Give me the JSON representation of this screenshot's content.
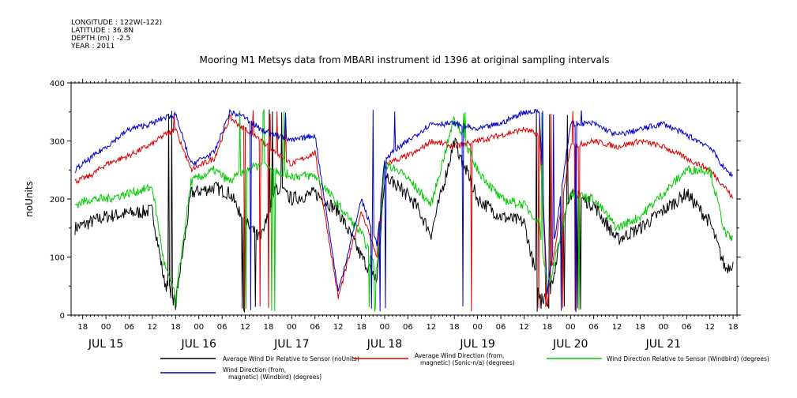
{
  "header": {
    "meta_lines": [
      "LONGITUDE : 122W(-122)",
      "LATITUDE : 36.8N",
      "DEPTH (m) : -2.5",
      "YEAR : 2011"
    ],
    "title": "Mooring M1 Metsys data from MBARI instrument id 1396 at original sampling intervals"
  },
  "colors": {
    "black": "#000000",
    "red": "#dd0000",
    "green": "#00cc00",
    "blue": "#0000cc"
  },
  "chart_data": {
    "type": "line",
    "title": "Mooring M1 Metsys data from MBARI instrument id 1396 at original sampling intervals",
    "ylabel": "noUnits",
    "xlabel": "",
    "ylim": [
      0,
      400
    ],
    "yticks": [
      0,
      100,
      200,
      300,
      400
    ],
    "xlim_hours": [
      -9,
      163
    ],
    "x_hour_labels": [
      "18",
      "00",
      "06",
      "12",
      "18",
      "00",
      "06",
      "12",
      "18",
      "00",
      "06",
      "12",
      "18",
      "00",
      "06",
      "12",
      "18",
      "00",
      "06",
      "12",
      "18",
      "00",
      "06",
      "12",
      "18",
      "00",
      "06",
      "12",
      "18"
    ],
    "day_labels": [
      "JUL 15",
      "JUL 16",
      "JUL 17",
      "JUL 18",
      "JUL 19",
      "JUL 20",
      "JUL 21"
    ],
    "legend_position": "bottom",
    "grid": false,
    "x_hours": [
      -8,
      -4,
      0,
      6,
      12,
      15,
      18,
      22,
      28,
      32,
      36,
      40,
      44,
      48,
      54,
      60,
      66,
      70,
      72,
      76,
      80,
      84,
      90,
      96,
      102,
      108,
      112,
      114,
      120,
      126,
      132,
      138,
      144,
      150,
      156,
      160,
      162
    ],
    "series": [
      {
        "name": "Average Wind Dir Relative to Sensor (noUnits)",
        "color": "#000000",
        "values": [
          150,
          160,
          170,
          175,
          180,
          60,
          20,
          210,
          220,
          210,
          160,
          130,
          220,
          200,
          210,
          180,
          100,
          60,
          240,
          220,
          190,
          140,
          300,
          200,
          170,
          160,
          40,
          20,
          210,
          190,
          130,
          150,
          180,
          210,
          160,
          80,
          90
        ]
      },
      {
        "name": "Average Wind Direction (from, magnetic) (Sonic-n/a) (degrees)",
        "color": "#dd0000",
        "values": [
          230,
          240,
          260,
          275,
          295,
          310,
          320,
          250,
          270,
          340,
          320,
          300,
          280,
          260,
          280,
          30,
          180,
          100,
          260,
          270,
          280,
          300,
          290,
          300,
          310,
          320,
          310,
          30,
          290,
          300,
          290,
          300,
          290,
          270,
          250,
          220,
          200
        ]
      },
      {
        "name": "Wind Direction Relative to Sensor (Windbird) (degrees)",
        "color": "#00cc00",
        "values": [
          190,
          200,
          200,
          210,
          220,
          90,
          30,
          230,
          250,
          230,
          250,
          260,
          250,
          240,
          240,
          190,
          140,
          80,
          260,
          250,
          220,
          190,
          340,
          250,
          200,
          190,
          160,
          40,
          210,
          200,
          150,
          170,
          210,
          250,
          250,
          140,
          130
        ]
      },
      {
        "name": "Wind Direction (from, magnetic) (Windbird) (degrees)",
        "color": "#0000cc",
        "values": [
          250,
          270,
          290,
          320,
          330,
          340,
          345,
          260,
          280,
          350,
          340,
          320,
          310,
          300,
          310,
          40,
          200,
          120,
          270,
          290,
          310,
          330,
          330,
          320,
          330,
          350,
          350,
          40,
          330,
          330,
          310,
          320,
          330,
          310,
          290,
          250,
          240
        ]
      }
    ],
    "spike_bands_hours": [
      [
        16,
        19
      ],
      [
        34,
        47
      ],
      [
        68,
        77
      ],
      [
        91,
        95
      ],
      [
        111,
        123
      ]
    ]
  },
  "legend": {
    "entries": [
      {
        "name": "Average Wind Dir Relative to Sensor (noUnits)",
        "lines": [
          "Average Wind Dir Relative to Sensor (noUnits)"
        ],
        "color": "#000000"
      },
      {
        "name": "Average Wind Direction (from, magnetic) (Sonic-n/a) (degrees)",
        "lines": [
          "Average Wind Direction (from,",
          "magnetic) (Sonic-n/a) (degrees)"
        ],
        "color": "#dd0000"
      },
      {
        "name": "Wind Direction Relative to Sensor (Windbird) (degrees)",
        "lines": [
          "Wind Direction Relative to Sensor (Windbird) (degrees)"
        ],
        "color": "#00cc00"
      },
      {
        "name": "Wind Direction (from, magnetic) (Windbird) (degrees)",
        "lines": [
          "Wind Direction (from,",
          "magnetic) (Windbird) (degrees)"
        ],
        "color": "#0000cc"
      }
    ]
  }
}
